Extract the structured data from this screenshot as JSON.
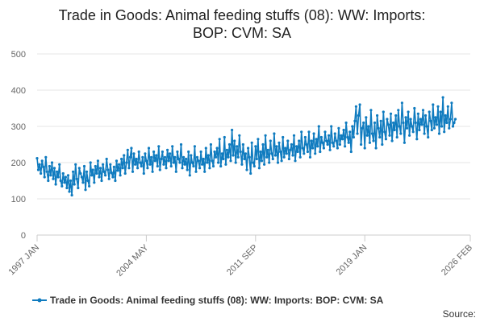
{
  "chart_data": {
    "type": "line",
    "title_lines": [
      "Trade in Goods: Animal feeding stuffs (08): WW: Imports:",
      "BOP: CVM: SA"
    ],
    "xlabel": "",
    "ylabel": "",
    "ylim": [
      0,
      500
    ],
    "yticks": [
      0,
      100,
      200,
      300,
      400,
      500
    ],
    "x_range": [
      "1997 JAN",
      "2026 FEB"
    ],
    "x_start_index": 0,
    "x_end_index": 349,
    "x_tick_labels": [
      {
        "label": "1997 JAN",
        "index": 0
      },
      {
        "label": "2004 MAY",
        "index": 88
      },
      {
        "label": "2011 SEP",
        "index": 176
      },
      {
        "label": "2019 JAN",
        "index": 264
      },
      {
        "label": "2026 FEB",
        "index": 349
      }
    ],
    "grid": true,
    "legend_position": "bottom",
    "series": [
      {
        "name": "Trade in Goods: Animal feeding stuffs (08): WW: Imports: BOP: CVM: SA",
        "color": "#0f7bbf",
        "marker": "dot",
        "description": "Monthly values 1997 JAN to 2026 FEB",
        "values": [
          212,
          180,
          195,
          170,
          205,
          188,
          160,
          215,
          175,
          150,
          190,
          165,
          200,
          155,
          185,
          140,
          175,
          160,
          195,
          150,
          135,
          170,
          145,
          160,
          130,
          165,
          120,
          150,
          110,
          175,
          140,
          195,
          155,
          130,
          185,
          170,
          160,
          145,
          190,
          125,
          175,
          150,
          135,
          200,
          165,
          180,
          145,
          190,
          170,
          205,
          160,
          185,
          150,
          195,
          175,
          165,
          210,
          180,
          155,
          195,
          172,
          160,
          188,
          150,
          205,
          178,
          195,
          165,
          210,
          185,
          220,
          170,
          200,
          235,
          185,
          215,
          240,
          175,
          225,
          195,
          210,
          185,
          230,
          200,
          190,
          215,
          170,
          225,
          205,
          185,
          240,
          195,
          215,
          175,
          230,
          205,
          220,
          190,
          245,
          180,
          210,
          230,
          195,
          215,
          185,
          235,
          205,
          225,
          190,
          245,
          200,
          215,
          175,
          230,
          210,
          200,
          250,
          185,
          215,
          195,
          210,
          180,
          230,
          165,
          220,
          200,
          190,
          245,
          175,
          215,
          205,
          185,
          230,
          195,
          210,
          175,
          240,
          200,
          220,
          185,
          250,
          205,
          190,
          230,
          215,
          240,
          200,
          265,
          190,
          225,
          210,
          270,
          195,
          235,
          215,
          250,
          205,
          290,
          220,
          260,
          200,
          245,
          215,
          275,
          230,
          195,
          250,
          210,
          225,
          180,
          240,
          215,
          170,
          255,
          200,
          190,
          245,
          210,
          265,
          185,
          230,
          205,
          250,
          195,
          275,
          215,
          235,
          200,
          260,
          225,
          210,
          280,
          220,
          245,
          200,
          255,
          230,
          205,
          270,
          215,
          240,
          225,
          260,
          210,
          235,
          250,
          220,
          275,
          205,
          245,
          230,
          260,
          215,
          285,
          240,
          225,
          270,
          250,
          230,
          285,
          215,
          260,
          240,
          280,
          225,
          265,
          245,
          300,
          230,
          270,
          255,
          240,
          285,
          260,
          250,
          275,
          235,
          300,
          255,
          245,
          280,
          260,
          240,
          295,
          250,
          275,
          265,
          290,
          245,
          310,
          270,
          255,
          285,
          230,
          300,
          270,
          315,
          355,
          280,
          330,
          360,
          250,
          295,
          310,
          240,
          325,
          275,
          300,
          255,
          345,
          280,
          260,
          310,
          240,
          330,
          295,
          270,
          315,
          250,
          340,
          285,
          265,
          320,
          305,
          275,
          335,
          260,
          310,
          290,
          330,
          270,
          345,
          300,
          280,
          365,
          310,
          255,
          325,
          295,
          340,
          275,
          320,
          300,
          285,
          350,
          310,
          265,
          335,
          290,
          320,
          305,
          345,
          280,
          330,
          300,
          270,
          340,
          315,
          290,
          360,
          295,
          325,
          305,
          355,
          280,
          340,
          300,
          380,
          285,
          330,
          310,
          355,
          295,
          320,
          365,
          300,
          310,
          320
        ]
      }
    ]
  },
  "legend": {
    "label": "Trade in Goods: Animal feeding stuffs (08): WW: Imports: BOP: CVM: SA"
  },
  "source": {
    "label": "Source:"
  }
}
